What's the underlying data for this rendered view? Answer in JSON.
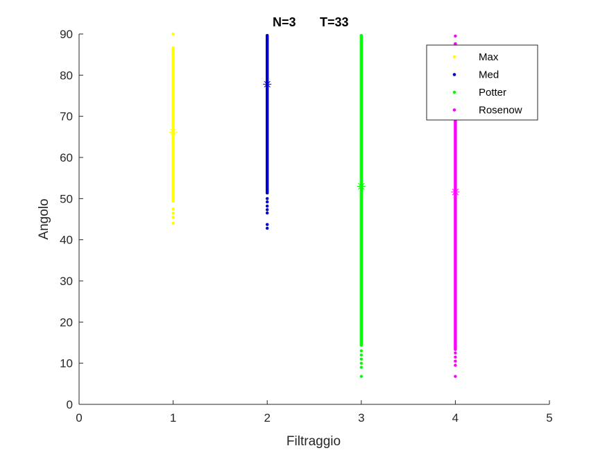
{
  "chart_data": {
    "type": "scatter",
    "title_left": "N=3",
    "title_right": "T=33",
    "xlabel": "Filtraggio",
    "ylabel": "Angolo",
    "xlim": [
      0,
      5
    ],
    "ylim": [
      0,
      90
    ],
    "xticks": [
      0,
      1,
      2,
      3,
      4,
      5
    ],
    "yticks": [
      0,
      10,
      20,
      30,
      40,
      50,
      60,
      70,
      80,
      90
    ],
    "grid": false,
    "legend_location": "top-right",
    "series": [
      {
        "name": "Max",
        "x": 1,
        "color": "#ffff00",
        "y_min": 44,
        "y_max": 90,
        "dense_min": 49,
        "dense_max": 87,
        "sparse_points": [
          44,
          45.5,
          46.5,
          47.5,
          90
        ],
        "mean_marker": 66.2
      },
      {
        "name": "Med",
        "x": 2,
        "color": "#0000cc",
        "y_min": 42.8,
        "y_max": 90,
        "dense_min": 51,
        "dense_max": 90,
        "sparse_points": [
          42.8,
          43.7,
          46.5,
          47.3,
          48.2,
          49.2,
          50
        ],
        "mean_marker": 77.8
      },
      {
        "name": "Potter",
        "x": 3,
        "color": "#00ff00",
        "y_min": 6.8,
        "y_max": 90,
        "dense_min": 14,
        "dense_max": 90,
        "sparse_points": [
          6.8,
          9,
          10,
          11,
          12,
          13
        ],
        "mean_marker": 53
      },
      {
        "name": "Rosenow",
        "x": 4,
        "color": "#ff00ff",
        "y_min": 6.8,
        "y_max": 89.5,
        "dense_min": 13,
        "dense_max": 88,
        "sparse_points": [
          6.8,
          9.5,
          10.5,
          11.5,
          12.5,
          89.5
        ],
        "mean_marker": 51.6
      }
    ]
  }
}
